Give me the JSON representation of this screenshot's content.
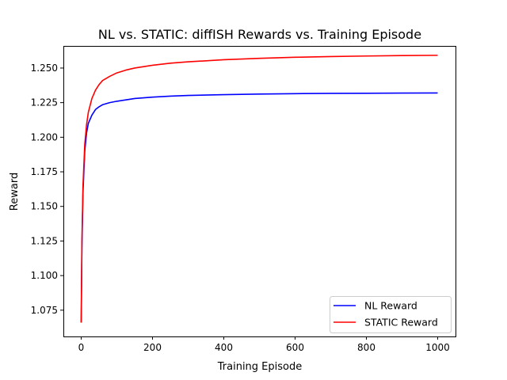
{
  "chart_data": {
    "type": "line",
    "title": "NL vs. STATIC: diffISH Rewards vs. Training Episode",
    "xlabel": "Training Episode",
    "ylabel": "Reward",
    "xlim": [
      -50,
      1050
    ],
    "ylim": [
      1.056,
      1.266
    ],
    "xticks": [
      0,
      200,
      400,
      600,
      800,
      1000
    ],
    "xtick_labels": [
      "0",
      "200",
      "400",
      "600",
      "800",
      "1000"
    ],
    "yticks": [
      1.075,
      1.1,
      1.125,
      1.15,
      1.175,
      1.2,
      1.225,
      1.25
    ],
    "ytick_labels": [
      "1.075",
      "1.100",
      "1.125",
      "1.150",
      "1.175",
      "1.200",
      "1.225",
      "1.250"
    ],
    "grid": false,
    "legend_position": "lower right",
    "series": [
      {
        "name": "NL Reward",
        "color": "#0000ff",
        "x": [
          0,
          2,
          5,
          10,
          15,
          20,
          30,
          40,
          50,
          60,
          80,
          100,
          125,
          150,
          200,
          250,
          300,
          400,
          500,
          600,
          700,
          800,
          900,
          1000
        ],
        "y": [
          1.066,
          1.12,
          1.16,
          1.19,
          1.203,
          1.21,
          1.216,
          1.22,
          1.222,
          1.2235,
          1.225,
          1.226,
          1.227,
          1.228,
          1.229,
          1.2297,
          1.2302,
          1.2308,
          1.2312,
          1.2315,
          1.2317,
          1.2318,
          1.2319,
          1.232
        ]
      },
      {
        "name": "STATIC Reward",
        "color": "#ff0000",
        "x": [
          0,
          2,
          5,
          10,
          15,
          20,
          30,
          40,
          50,
          60,
          80,
          100,
          125,
          150,
          200,
          250,
          300,
          400,
          500,
          600,
          700,
          800,
          900,
          1000
        ],
        "y": [
          1.066,
          1.125,
          1.165,
          1.195,
          1.209,
          1.218,
          1.228,
          1.234,
          1.238,
          1.241,
          1.244,
          1.2465,
          1.2485,
          1.25,
          1.252,
          1.2535,
          1.2545,
          1.256,
          1.257,
          1.2578,
          1.2583,
          1.2587,
          1.259,
          1.2592
        ]
      }
    ]
  }
}
